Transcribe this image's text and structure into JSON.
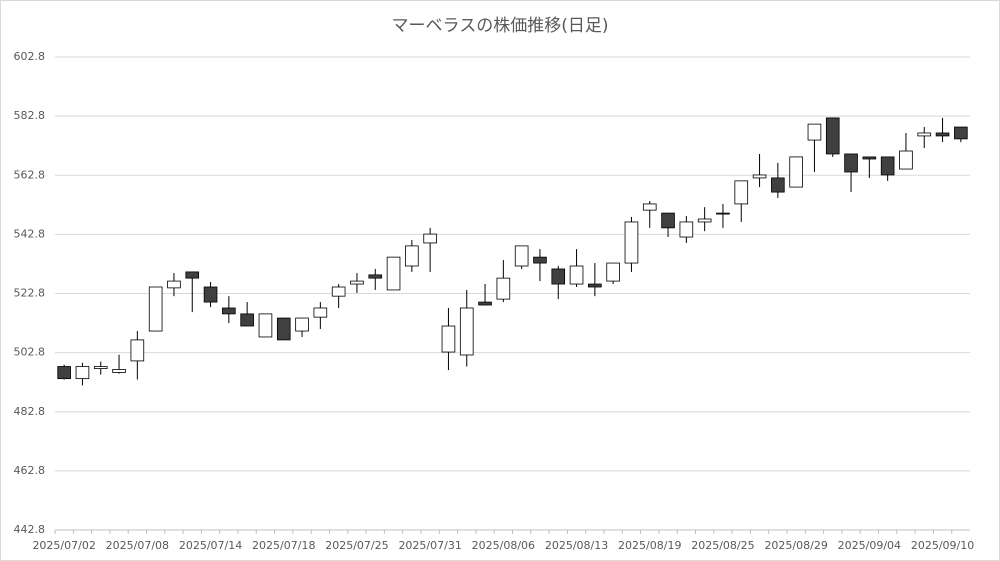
{
  "chart_data": {
    "type": "candlestick",
    "title": "マーベラスの株価推移(日足)",
    "categories": [
      "2025/07/02",
      null,
      null,
      null,
      "2025/07/08",
      null,
      null,
      null,
      "2025/07/14",
      null,
      null,
      null,
      "2025/07/18",
      null,
      null,
      null,
      "2025/07/25",
      null,
      null,
      null,
      "2025/07/31",
      null,
      null,
      null,
      "2025/08/06",
      null,
      null,
      null,
      "2025/08/13",
      null,
      null,
      null,
      "2025/08/19",
      null,
      null,
      null,
      "2025/08/25",
      null,
      null,
      null,
      "2025/08/29",
      null,
      null,
      null,
      "2025/09/04",
      null,
      null,
      null,
      "2025/09/10",
      null
    ],
    "open": [
      498.1,
      494.0,
      497.4,
      496.1,
      500.0,
      510.1,
      524.7,
      530.1,
      525.0,
      517.9,
      515.9,
      508.1,
      514.5,
      510.1,
      514.8,
      521.9,
      526.0,
      529.1,
      524.0,
      532.1,
      539.9,
      503.0,
      502.0,
      519.9,
      520.9,
      532.1,
      535.1,
      531.1,
      526.0,
      526.0,
      527.0,
      533.1,
      551.0,
      550.0,
      541.9,
      547.0,
      550.0,
      553.1,
      561.9,
      561.9,
      558.8,
      574.7,
      582.2,
      570.0,
      569.0,
      569.0,
      564.9,
      576.1,
      577.1,
      579.1
    ],
    "high": [
      498.7,
      499.4,
      499.8,
      502.1,
      510.1,
      525.0,
      529.7,
      530.1,
      526.7,
      521.9,
      519.9,
      515.9,
      514.5,
      514.5,
      519.9,
      526.0,
      529.7,
      531.1,
      535.1,
      540.9,
      545.0,
      517.9,
      524.0,
      526.0,
      534.1,
      538.9,
      537.8,
      532.1,
      537.8,
      533.1,
      533.1,
      548.7,
      554.1,
      550.0,
      549.0,
      552.0,
      553.1,
      560.9,
      570.0,
      567.0,
      569.0,
      580.1,
      582.2,
      570.0,
      569.0,
      569.0,
      577.1,
      579.1,
      582.2,
      579.1
    ],
    "low": [
      493.7,
      491.7,
      495.4,
      495.7,
      493.7,
      510.1,
      521.9,
      516.5,
      518.2,
      512.8,
      511.8,
      508.1,
      507.1,
      508.1,
      510.8,
      517.9,
      523.0,
      524.0,
      524.0,
      530.1,
      530.1,
      496.9,
      498.1,
      518.9,
      519.9,
      531.1,
      527.0,
      520.9,
      525.0,
      521.9,
      526.0,
      530.1,
      545.0,
      541.9,
      539.9,
      543.9,
      545.0,
      547.0,
      558.8,
      555.1,
      558.8,
      563.9,
      569.0,
      557.1,
      561.9,
      560.9,
      564.9,
      572.0,
      574.0,
      574.0
    ],
    "close": [
      494.0,
      498.1,
      498.1,
      497.1,
      507.1,
      525.0,
      527.0,
      528.0,
      519.9,
      515.9,
      511.8,
      515.9,
      507.1,
      514.5,
      517.9,
      525.0,
      527.0,
      528.0,
      535.1,
      538.9,
      542.9,
      511.8,
      517.9,
      518.9,
      528.0,
      538.9,
      533.1,
      526.0,
      532.1,
      525.0,
      533.1,
      547.0,
      553.1,
      545.0,
      547.0,
      548.0,
      549.7,
      560.9,
      562.9,
      557.1,
      569.0,
      580.1,
      570.0,
      563.9,
      568.3,
      562.9,
      571.0,
      577.1,
      576.1,
      575.1
    ],
    "up_color": "#ffffff",
    "down_color": "#404040",
    "ylim": [
      442.8,
      602.8
    ],
    "yticks": [
      442.8,
      462.8,
      482.8,
      502.8,
      522.8,
      542.8,
      562.8,
      582.8,
      602.8
    ],
    "grid": true
  }
}
